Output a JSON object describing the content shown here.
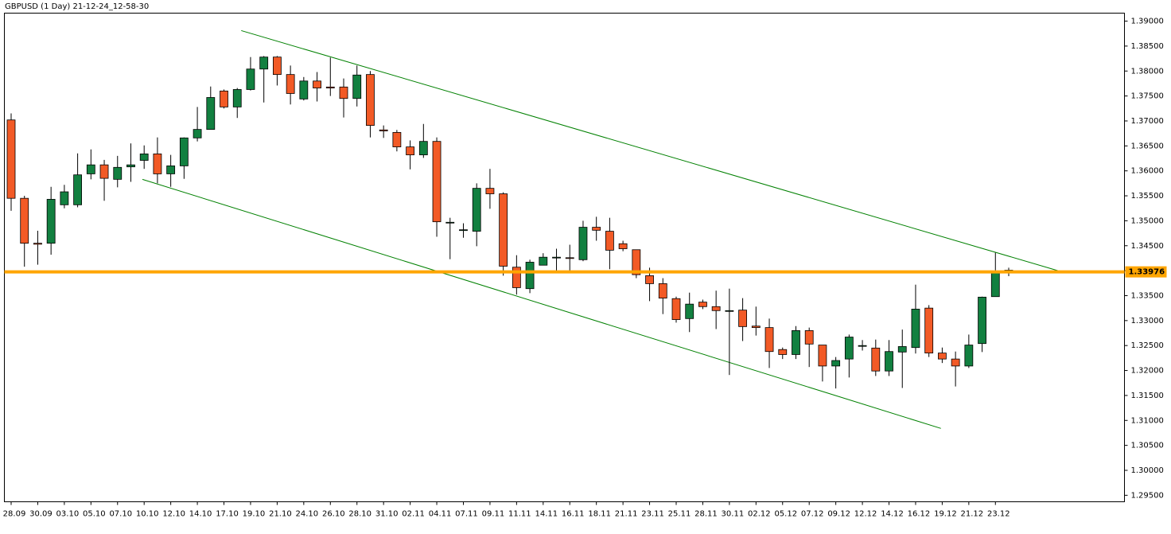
{
  "chart_data": {
    "type": "candlestick",
    "title": "GBPUSD (1 Day) 21-12-24_12-58-30",
    "categories": [
      "28.09",
      null,
      "30.09",
      null,
      "03.10",
      null,
      "05.10",
      null,
      "07.10",
      null,
      "10.10",
      null,
      "12.10",
      null,
      "14.10",
      null,
      "17.10",
      null,
      "19.10",
      null,
      "21.10",
      null,
      "24.10",
      null,
      "26.10",
      null,
      "28.10",
      null,
      "31.10",
      null,
      "02.11",
      null,
      "04.11",
      null,
      "07.11",
      null,
      "09.11",
      null,
      "11.11",
      null,
      "14.11",
      null,
      "16.11",
      null,
      "18.11",
      null,
      "21.11",
      null,
      "23.11",
      null,
      "25.11",
      null,
      "28.11",
      null,
      "30.11",
      null,
      "02.12",
      null,
      "05.12",
      null,
      "07.12",
      null,
      "09.12",
      null,
      "12.12",
      null,
      "14.12",
      null,
      "16.12",
      null,
      "19.12",
      null,
      "21.12",
      null,
      "23.12",
      null
    ],
    "open": [
      1.3702,
      1.3545,
      1.3455,
      1.3455,
      1.3532,
      1.3532,
      1.3594,
      1.3612,
      1.3583,
      1.3608,
      1.3621,
      1.3634,
      1.3594,
      1.361,
      1.3666,
      1.3683,
      1.376,
      1.3728,
      1.3763,
      1.3804,
      1.3828,
      1.3793,
      1.3744,
      1.378,
      1.3768,
      1.3768,
      1.3745,
      1.3793,
      1.3682,
      1.3677,
      1.3648,
      1.3632,
      1.3659,
      1.3497,
      1.3482,
      1.3479,
      1.3565,
      1.3554,
      1.3407,
      1.3364,
      1.3411,
      1.3426,
      1.3426,
      1.3422,
      1.3487,
      1.3479,
      1.3454,
      1.3442,
      1.339,
      1.3374,
      1.3344,
      1.3304,
      1.3337,
      1.3328,
      1.332,
      1.3321,
      1.3289,
      1.3286,
      1.3242,
      1.3232,
      1.328,
      1.3251,
      1.3209,
      1.3223,
      1.325,
      1.3245,
      1.3199,
      1.3237,
      1.3246,
      1.3325,
      1.3235,
      1.3223,
      1.3209,
      1.3254,
      1.3348,
      1.3401
    ],
    "high": [
      1.3715,
      1.355,
      1.348,
      1.3568,
      1.3572,
      1.3635,
      1.3643,
      1.3622,
      1.363,
      1.3655,
      1.3651,
      1.3667,
      1.3632,
      1.3667,
      1.3728,
      1.3769,
      1.3763,
      1.3766,
      1.3828,
      1.383,
      1.383,
      1.3811,
      1.3788,
      1.3798,
      1.3827,
      1.3785,
      1.3811,
      1.38,
      1.3691,
      1.3682,
      1.3661,
      1.3694,
      1.3667,
      1.3506,
      1.3495,
      1.3575,
      1.3604,
      1.3557,
      1.3431,
      1.3422,
      1.3435,
      1.3444,
      1.3452,
      1.35,
      1.3508,
      1.3506,
      1.346,
      1.3442,
      1.3406,
      1.3385,
      1.3348,
      1.3356,
      1.3342,
      1.336,
      1.3364,
      1.3345,
      1.3328,
      1.3304,
      1.3246,
      1.3289,
      1.3286,
      1.3251,
      1.3227,
      1.3272,
      1.3261,
      1.3262,
      1.3261,
      1.3282,
      1.3372,
      1.3331,
      1.3246,
      1.3238,
      1.3272,
      1.3348,
      1.3436,
      1.3406
    ],
    "low": [
      1.352,
      1.3408,
      1.3412,
      1.3432,
      1.3525,
      1.3527,
      1.3583,
      1.354,
      1.3567,
      1.3578,
      1.3604,
      1.3575,
      1.3568,
      1.3584,
      1.3659,
      1.3683,
      1.3725,
      1.3706,
      1.3761,
      1.3737,
      1.3771,
      1.3733,
      1.3741,
      1.3739,
      1.375,
      1.3707,
      1.3729,
      1.3667,
      1.3666,
      1.3639,
      1.3603,
      1.3626,
      1.3468,
      1.3423,
      1.3466,
      1.3449,
      1.3524,
      1.339,
      1.3352,
      1.3355,
      1.3411,
      1.34,
      1.3395,
      1.3419,
      1.346,
      1.3403,
      1.3439,
      1.3385,
      1.3339,
      1.3313,
      1.3296,
      1.3277,
      1.3323,
      1.3283,
      1.3191,
      1.3259,
      1.327,
      1.3205,
      1.3223,
      1.3223,
      1.3207,
      1.3178,
      1.3164,
      1.3186,
      1.324,
      1.3189,
      1.3189,
      1.3165,
      1.3234,
      1.3227,
      1.3215,
      1.3168,
      1.3205,
      1.3237,
      1.3348,
      1.3389
    ],
    "close": [
      1.3545,
      1.3455,
      1.3453,
      1.3543,
      1.3558,
      1.3592,
      1.3612,
      1.3585,
      1.3607,
      1.3612,
      1.3634,
      1.3594,
      1.361,
      1.3666,
      1.3683,
      1.3747,
      1.3728,
      1.3763,
      1.3804,
      1.3828,
      1.3793,
      1.3755,
      1.378,
      1.3766,
      1.3766,
      1.3745,
      1.3792,
      1.3691,
      1.368,
      1.3648,
      1.3632,
      1.3659,
      1.3498,
      1.3497,
      1.3482,
      1.3565,
      1.3554,
      1.3409,
      1.3366,
      1.3417,
      1.3427,
      1.3427,
      1.3425,
      1.3487,
      1.3481,
      1.3441,
      1.3444,
      1.3392,
      1.3374,
      1.3345,
      1.3302,
      1.3333,
      1.3328,
      1.332,
      1.332,
      1.3288,
      1.3286,
      1.3238,
      1.3232,
      1.328,
      1.3253,
      1.3209,
      1.322,
      1.3267,
      1.325,
      1.3199,
      1.3238,
      1.3248,
      1.3323,
      1.3235,
      1.3223,
      1.3209,
      1.3251,
      1.3347,
      1.3399,
      1.3398
    ],
    "up_color": "#128040",
    "down_color": "#f25a26",
    "ylim": [
      1.2937,
      1.3916
    ],
    "yticks": [
      {
        "value": 1.295,
        "label": "1.29500"
      },
      {
        "value": 1.3,
        "label": "1.30000"
      },
      {
        "value": 1.305,
        "label": "1.30500"
      },
      {
        "value": 1.31,
        "label": "1.31000"
      },
      {
        "value": 1.315,
        "label": "1.31500"
      },
      {
        "value": 1.32,
        "label": "1.32000"
      },
      {
        "value": 1.325,
        "label": "1.32500"
      },
      {
        "value": 1.33,
        "label": "1.33000"
      },
      {
        "value": 1.335,
        "label": "1.33500"
      },
      {
        "value": 1.34,
        "label": "1.34000"
      },
      {
        "value": 1.345,
        "label": "1.34500"
      },
      {
        "value": 1.35,
        "label": "1.35000"
      },
      {
        "value": 1.355,
        "label": "1.35500"
      },
      {
        "value": 1.36,
        "label": "1.36000"
      },
      {
        "value": 1.365,
        "label": "1.36500"
      },
      {
        "value": 1.37,
        "label": "1.37000"
      },
      {
        "value": 1.375,
        "label": "1.37500"
      },
      {
        "value": 1.38,
        "label": "1.38000"
      },
      {
        "value": 1.385,
        "label": "1.38500"
      },
      {
        "value": 1.39,
        "label": "1.39000"
      }
    ],
    "level": {
      "value": 1.33976,
      "label": "1.33976",
      "color": "#ffa500"
    },
    "trendlines": [
      {
        "x": [
          17.3,
          78.7
        ],
        "y": [
          1.3881,
          1.34
        ],
        "color": "#008000"
      },
      {
        "x": [
          9.87,
          69.9
        ],
        "y": [
          1.3583,
          1.3084
        ],
        "color": "#008000"
      }
    ]
  }
}
